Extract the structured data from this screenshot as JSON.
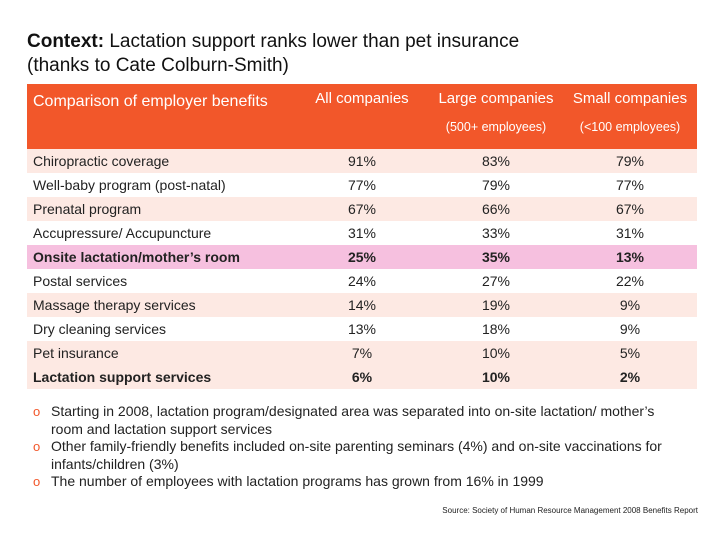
{
  "title": {
    "label": "Context:",
    "line1": "Lactation support ranks lower than pet insurance",
    "line2": "(thanks to Cate Colburn-Smith)"
  },
  "table": {
    "header": {
      "first": "Comparison of employer benefits",
      "all": "All companies",
      "large": "Large companies",
      "large_sub": "(500+ employees)",
      "small": "Small companies",
      "small_sub": "(<100 employees)"
    },
    "rows": [
      {
        "label": "Chiropractic coverage",
        "all": "91%",
        "large": "83%",
        "small": "79%"
      },
      {
        "label": "Well-baby program (post-natal)",
        "all": "77%",
        "large": "79%",
        "small": "77%"
      },
      {
        "label": "Prenatal program",
        "all": "67%",
        "large": "66%",
        "small": "67%"
      },
      {
        "label": "Accupressure/ Accupuncture",
        "all": "31%",
        "large": "33%",
        "small": "31%"
      },
      {
        "label": "Onsite lactation/mother’s room",
        "all": "25%",
        "large": "35%",
        "small": "13%"
      },
      {
        "label": "Postal services",
        "all": "24%",
        "large": "27%",
        "small": "22%"
      },
      {
        "label": "Massage therapy services",
        "all": "14%",
        "large": "19%",
        "small": "9%"
      },
      {
        "label": "Dry cleaning services",
        "all": "13%",
        "large": "18%",
        "small": "9%"
      },
      {
        "label": "Pet insurance",
        "all": "7%",
        "large": "10%",
        "small": "5%"
      },
      {
        "label": "Lactation support services",
        "all": "6%",
        "large": "10%",
        "small": "2%"
      }
    ]
  },
  "bullets": [
    "Starting in 2008, lactation program/designated area was separated into on-site lactation/ mother’s room and lactation support services",
    "Other family-friendly benefits included on-site parenting seminars (4%) and on-site vaccinations for infants/children (3%)",
    "The number of employees with lactation programs has grown from 16% in 1999"
  ],
  "bullet_marker": "o",
  "source": "Source: Society of Human Resource Management 2008 Benefits Report",
  "colors": {
    "header": "#f2572a",
    "row_light": "#fde9e3",
    "row_highlight": "#f6c0df"
  }
}
